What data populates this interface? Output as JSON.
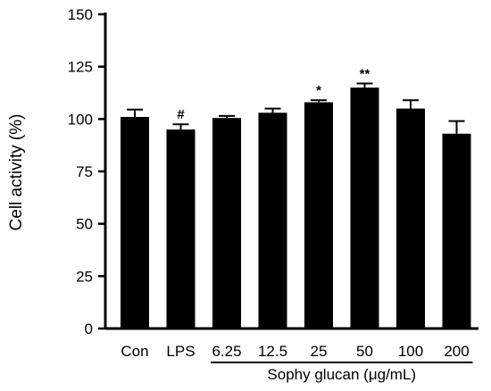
{
  "chart_data": {
    "type": "bar",
    "title": "",
    "xlabel": "",
    "ylabel": "Cell activity (%)",
    "ylim": [
      0,
      150
    ],
    "yticks": [
      0,
      25,
      50,
      75,
      100,
      125,
      150
    ],
    "categories": [
      "Con",
      "LPS",
      "6.25",
      "12.5",
      "25",
      "50",
      "100",
      "200"
    ],
    "values": [
      101,
      95,
      100.5,
      103,
      108,
      115,
      105,
      93
    ],
    "errors": [
      3.5,
      2.5,
      1,
      2,
      1,
      2,
      4,
      6
    ],
    "significance": [
      "",
      "#",
      "",
      "",
      "*",
      "**",
      "",
      ""
    ],
    "group": {
      "label": "Sophy glucan (μg/mL)",
      "from_index": 2,
      "to_index": 7
    },
    "grid": false,
    "colors": {
      "bar": "#000000",
      "axis": "#000000"
    }
  }
}
